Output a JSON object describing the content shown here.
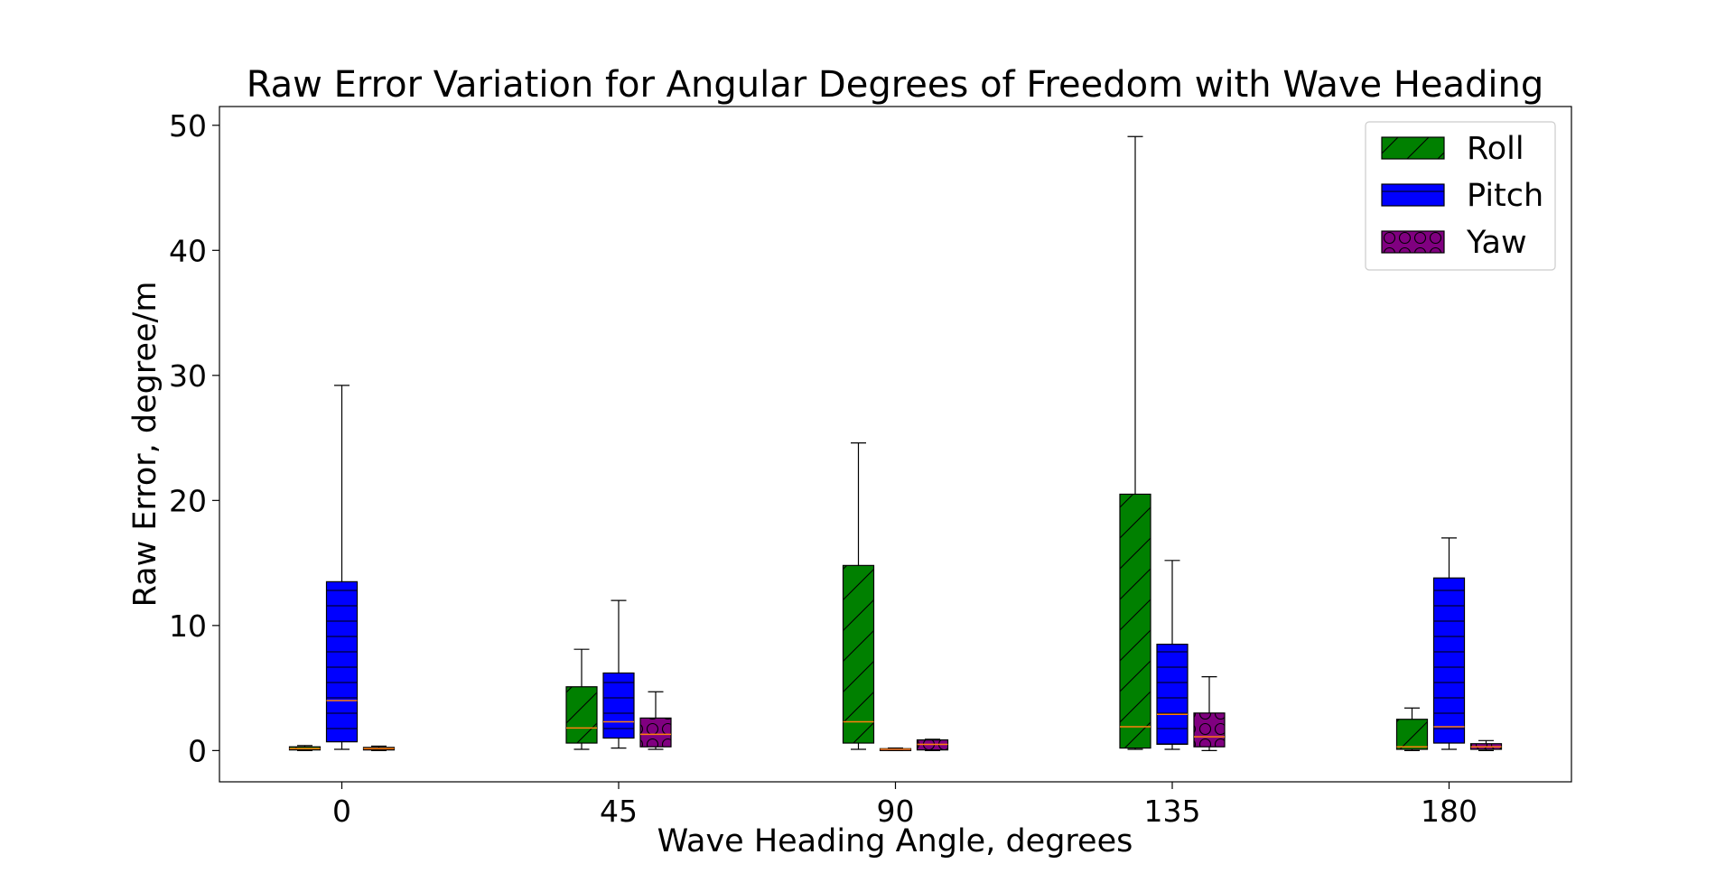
{
  "chart_data": {
    "type": "box",
    "title": "Raw Error Variation for Angular Degrees of Freedom with Wave Heading",
    "xlabel": "Wave Heading Angle, degrees",
    "ylabel": "Raw Error, degree/m",
    "categories": [
      "0",
      "45",
      "90",
      "135",
      "180"
    ],
    "ylim": [
      -2.5,
      51.5
    ],
    "yticks": [
      0,
      10,
      20,
      30,
      40,
      50
    ],
    "grid": false,
    "legend_position": "top-right",
    "series": [
      {
        "name": "Roll",
        "color": "#008000",
        "hatch": "diagonal",
        "boxes": [
          {
            "category": "0",
            "whisker_low": 0.0,
            "q1": 0.05,
            "median": 0.15,
            "q3": 0.3,
            "whisker_high": 0.4
          },
          {
            "category": "45",
            "whisker_low": 0.1,
            "q1": 0.6,
            "median": 1.8,
            "q3": 5.1,
            "whisker_high": 8.1
          },
          {
            "category": "90",
            "whisker_low": 0.1,
            "q1": 0.6,
            "median": 2.3,
            "q3": 14.8,
            "whisker_high": 24.6
          },
          {
            "category": "135",
            "whisker_low": 0.1,
            "q1": 0.2,
            "median": 1.9,
            "q3": 20.5,
            "whisker_high": 49.1
          },
          {
            "category": "180",
            "whisker_low": 0.0,
            "q1": 0.1,
            "median": 0.3,
            "q3": 2.5,
            "whisker_high": 3.4
          }
        ]
      },
      {
        "name": "Pitch",
        "color": "#0000ff",
        "hatch": "horizontal",
        "boxes": [
          {
            "category": "0",
            "whisker_low": 0.1,
            "q1": 0.7,
            "median": 4.0,
            "q3": 13.5,
            "whisker_high": 29.2
          },
          {
            "category": "45",
            "whisker_low": 0.2,
            "q1": 1.0,
            "median": 2.3,
            "q3": 6.2,
            "whisker_high": 12.0
          },
          {
            "category": "90",
            "whisker_low": 0.0,
            "q1": 0.0,
            "median": 0.1,
            "q3": 0.15,
            "whisker_high": 0.2
          },
          {
            "category": "135",
            "whisker_low": 0.1,
            "q1": 0.5,
            "median": 2.9,
            "q3": 8.5,
            "whisker_high": 15.2
          },
          {
            "category": "180",
            "whisker_low": 0.1,
            "q1": 0.6,
            "median": 1.9,
            "q3": 13.8,
            "whisker_high": 17.0
          }
        ]
      },
      {
        "name": "Yaw",
        "color": "#800080",
        "hatch": "circles",
        "boxes": [
          {
            "category": "0",
            "whisker_low": 0.0,
            "q1": 0.05,
            "median": 0.15,
            "q3": 0.25,
            "whisker_high": 0.35
          },
          {
            "category": "45",
            "whisker_low": 0.1,
            "q1": 0.3,
            "median": 1.3,
            "q3": 2.6,
            "whisker_high": 4.7
          },
          {
            "category": "90",
            "whisker_low": 0.0,
            "q1": 0.05,
            "median": 0.5,
            "q3": 0.85,
            "whisker_high": 0.9
          },
          {
            "category": "135",
            "whisker_low": 0.0,
            "q1": 0.3,
            "median": 1.1,
            "q3": 3.0,
            "whisker_high": 5.9
          },
          {
            "category": "180",
            "whisker_low": 0.0,
            "q1": 0.1,
            "median": 0.3,
            "q3": 0.55,
            "whisker_high": 0.8
          }
        ]
      }
    ],
    "median_color": "#ff7f0e"
  }
}
